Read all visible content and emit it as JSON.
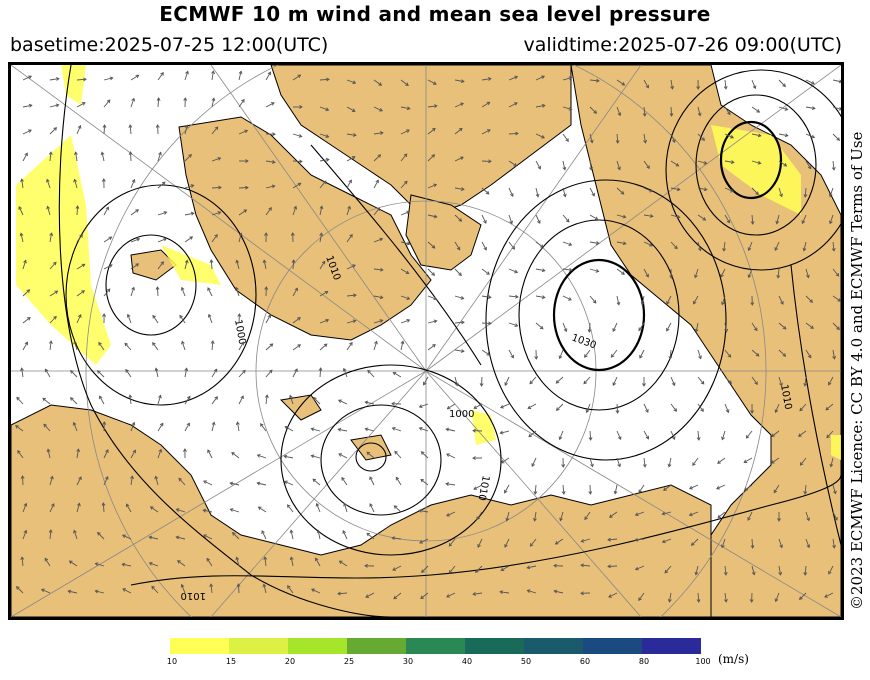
{
  "header": {
    "title": "ECMWF 10 m wind and mean sea level pressure",
    "basetime": "basetime:2025-07-25 12:00(UTC)",
    "validtime": "validtime:2025-07-26 09:00(UTC)"
  },
  "licence": "©2023 ECMWF Licence: CC BY 4.0 and ECMWF Terms of Use",
  "map": {
    "projection": "polar-stereographic-arctic",
    "land_color": "#e8c07a",
    "sea_color": "#ffffff",
    "isobar_labels": [
      "1010",
      "1000",
      "1030",
      "1000",
      "1010",
      "1010",
      "1010"
    ]
  },
  "colorbar": {
    "unit": "(m/s)",
    "ticks": [
      "10",
      "15",
      "20",
      "25",
      "30",
      "40",
      "50",
      "60",
      "80",
      "100"
    ],
    "colors": [
      "#ffff55",
      "#ddf044",
      "#a6e62a",
      "#66aa33",
      "#2a8855",
      "#1a6a5a",
      "#1a5a6a",
      "#1a4a80",
      "#2a2a9a"
    ]
  }
}
